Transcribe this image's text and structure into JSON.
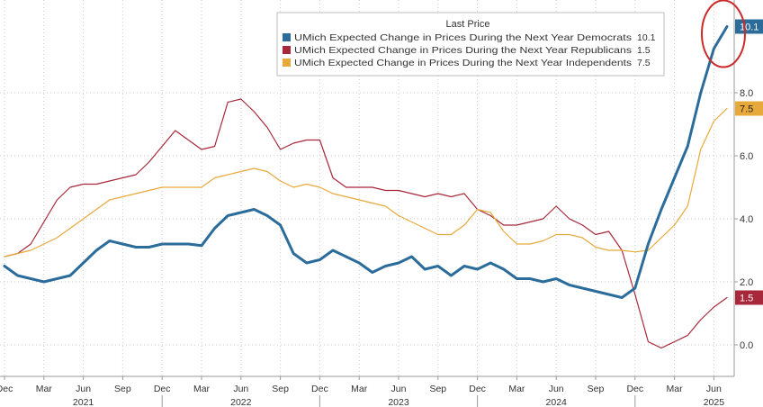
{
  "chart_data": {
    "type": "line",
    "legend": {
      "header": "Last Price",
      "placement": "top-right"
    },
    "series": [
      {
        "name": "UMich Expected Change in Prices During the Next Year Democrats",
        "last_value_label": "10.1",
        "color": "#2b6c9b",
        "values": [
          2.5,
          2.2,
          2.1,
          2.0,
          2.1,
          2.2,
          2.6,
          3.0,
          3.3,
          3.2,
          3.1,
          3.1,
          3.2,
          3.2,
          3.2,
          3.15,
          3.7,
          4.1,
          4.2,
          4.3,
          4.1,
          3.8,
          2.9,
          2.6,
          2.7,
          3.0,
          2.8,
          2.6,
          2.3,
          2.5,
          2.6,
          2.8,
          2.4,
          2.5,
          2.2,
          2.5,
          2.4,
          2.6,
          2.4,
          2.1,
          2.1,
          2.0,
          2.1,
          1.9,
          1.8,
          1.7,
          1.6,
          1.5,
          1.8,
          3.2,
          4.3,
          5.3,
          6.3,
          8.0,
          9.4,
          10.1
        ]
      },
      {
        "name": "UMich Expected Change in Prices During the Next Year Republicans",
        "last_value_label": "1.5",
        "color": "#a6283a",
        "values": [
          2.8,
          2.9,
          3.2,
          3.9,
          4.6,
          5.0,
          5.1,
          5.1,
          5.2,
          5.3,
          5.4,
          5.8,
          6.3,
          6.8,
          6.5,
          6.2,
          6.3,
          7.7,
          7.8,
          7.4,
          6.9,
          6.2,
          6.4,
          6.5,
          6.5,
          5.3,
          5.0,
          5.0,
          5.0,
          4.9,
          4.9,
          4.8,
          4.7,
          4.8,
          4.7,
          4.8,
          4.3,
          4.1,
          3.8,
          3.8,
          3.9,
          4.0,
          4.4,
          4.0,
          3.8,
          3.5,
          3.6,
          3.0,
          1.6,
          0.1,
          -0.1,
          0.1,
          0.3,
          0.8,
          1.2,
          1.5
        ]
      },
      {
        "name": "UMich Expected Change in Prices During the Next Year Independents",
        "last_value_label": "7.5",
        "color": "#e8a93b",
        "values": [
          2.8,
          2.9,
          3.0,
          3.2,
          3.4,
          3.7,
          4.0,
          4.3,
          4.6,
          4.7,
          4.8,
          4.9,
          5.0,
          5.0,
          5.0,
          5.0,
          5.3,
          5.4,
          5.5,
          5.6,
          5.5,
          5.2,
          5.0,
          5.1,
          5.0,
          4.8,
          4.7,
          4.6,
          4.5,
          4.4,
          4.1,
          3.9,
          3.7,
          3.5,
          3.5,
          3.8,
          4.3,
          4.2,
          3.6,
          3.2,
          3.2,
          3.3,
          3.5,
          3.5,
          3.4,
          3.1,
          3.0,
          3.0,
          2.95,
          3.0,
          3.4,
          3.8,
          4.4,
          6.2,
          7.1,
          7.5
        ]
      }
    ],
    "y_axis": {
      "side": "right",
      "ylim": [
        -1,
        11
      ],
      "ticks": [
        0,
        2,
        4,
        6,
        8
      ],
      "tick_labels": [
        "0.0",
        "2.0",
        "4.0",
        "6.0",
        "8.0"
      ],
      "grid": true,
      "grid_style": "dotted"
    },
    "x_axis": {
      "month_ticks": [
        {
          "index": 0,
          "label": "Dec"
        },
        {
          "index": 3,
          "label": "Mar"
        },
        {
          "index": 6,
          "label": "Jun"
        },
        {
          "index": 9,
          "label": "Sep"
        },
        {
          "index": 12,
          "label": "Dec"
        },
        {
          "index": 15,
          "label": "Mar"
        },
        {
          "index": 18,
          "label": "Jun"
        },
        {
          "index": 21,
          "label": "Sep"
        },
        {
          "index": 24,
          "label": "Dec"
        },
        {
          "index": 27,
          "label": "Mar"
        },
        {
          "index": 30,
          "label": "Jun"
        },
        {
          "index": 33,
          "label": "Sep"
        },
        {
          "index": 36,
          "label": "Dec"
        },
        {
          "index": 39,
          "label": "Mar"
        },
        {
          "index": 42,
          "label": "Jun"
        },
        {
          "index": 45,
          "label": "Sep"
        },
        {
          "index": 48,
          "label": "Dec"
        },
        {
          "index": 51,
          "label": "Mar"
        },
        {
          "index": 54,
          "label": "Jun"
        }
      ],
      "year_ticks": [
        {
          "index": 6,
          "label": "2021"
        },
        {
          "index": 18,
          "label": "2022"
        },
        {
          "index": 30,
          "label": "2023"
        },
        {
          "index": 42,
          "label": "2024"
        },
        {
          "index": 54,
          "label": "2025"
        }
      ],
      "year_dividers": [
        12,
        24,
        36,
        48
      ]
    },
    "annotation": {
      "type": "ellipse",
      "target_series": 0,
      "target_index": 55,
      "color": "#cc2a2a"
    },
    "background": "#ffffff",
    "grid_color": "#c8c8c8"
  }
}
